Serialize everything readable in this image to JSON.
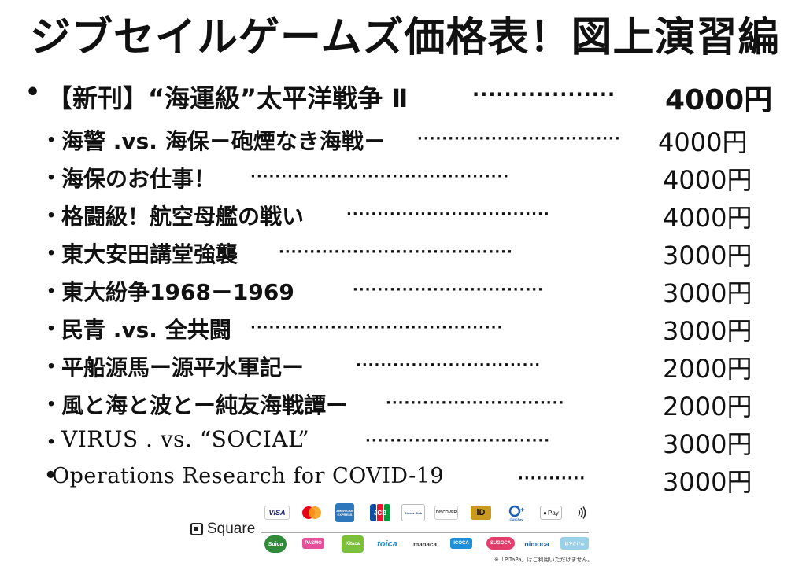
{
  "title": "ジブセイルゲームズ価格表！図上演習編",
  "featured": {
    "bullet": "•",
    "name": "【新刊】“海運級”太平洋戦争 Ⅱ",
    "dots": "··················",
    "price": "4000円"
  },
  "items": [
    {
      "bullet": "・",
      "name": "海警 .vs. 海保－砲煙なき海戦－",
      "dots": "·································",
      "price": "4000円"
    },
    {
      "bullet": "・",
      "name": "海保のお仕事！",
      "dots": "··········································",
      "price": "4000円"
    },
    {
      "bullet": "・",
      "name": "格闘級！航空母艦の戦い",
      "dots": "·································",
      "price": "4000円"
    },
    {
      "bullet": "・",
      "name": "東大安田講堂強襲",
      "dots": "······································",
      "price": "3000円"
    },
    {
      "bullet": "・",
      "name": "東大紛争1968－1969",
      "dots": "·······························",
      "price": "3000円"
    },
    {
      "bullet": "・",
      "name": "民青 .vs. 全共闘",
      "dots": "·········································",
      "price": "3000円"
    },
    {
      "bullet": "・",
      "name": "平船源馬ー源平水軍記ー",
      "dots": "······························",
      "price": "2000円"
    },
    {
      "bullet": "・",
      "name": "風と海と波とー純友海戦譚ー",
      "dots": "·····························",
      "price": "2000円"
    },
    {
      "bullet": "・",
      "name": "VIRUS . vs.  “SOCIAL”",
      "dots": "······························",
      "price": "3000円"
    },
    {
      "bullet": "•",
      "name": "Operations Research for COVID-19",
      "dots": "···········",
      "price": "3000円"
    }
  ],
  "payment": {
    "square_label": "Square",
    "cards": [
      "VISA",
      "mastercard",
      "AMERICAN EXPRESS",
      "JCB",
      "Diners Club",
      "DISCOVER",
      "iD",
      "QUICPay",
      "Pay"
    ],
    "ic_cards": [
      "Suica",
      "PASMO",
      "Kitaca",
      "toica",
      "manaca",
      "ICOCA",
      "SUGOCA",
      "nimoca",
      "はやかけん"
    ],
    "note": "※「PiTaPa」はご利用いただけません。",
    "colors": {
      "visa": "#1a1f71",
      "mastercard_red": "#eb001b",
      "mastercard_orange": "#f79e1b",
      "amex": "#2e77bc",
      "jcb_blue": "#0b4ea2",
      "jcb_red": "#e21836",
      "jcb_green": "#009b3a",
      "suica": "#2f8a3a",
      "pasmo": "#e6509a",
      "icoca": "#1e8fd8",
      "sugoca": "#e23d6b",
      "nimoca": "#1c5fae"
    }
  }
}
